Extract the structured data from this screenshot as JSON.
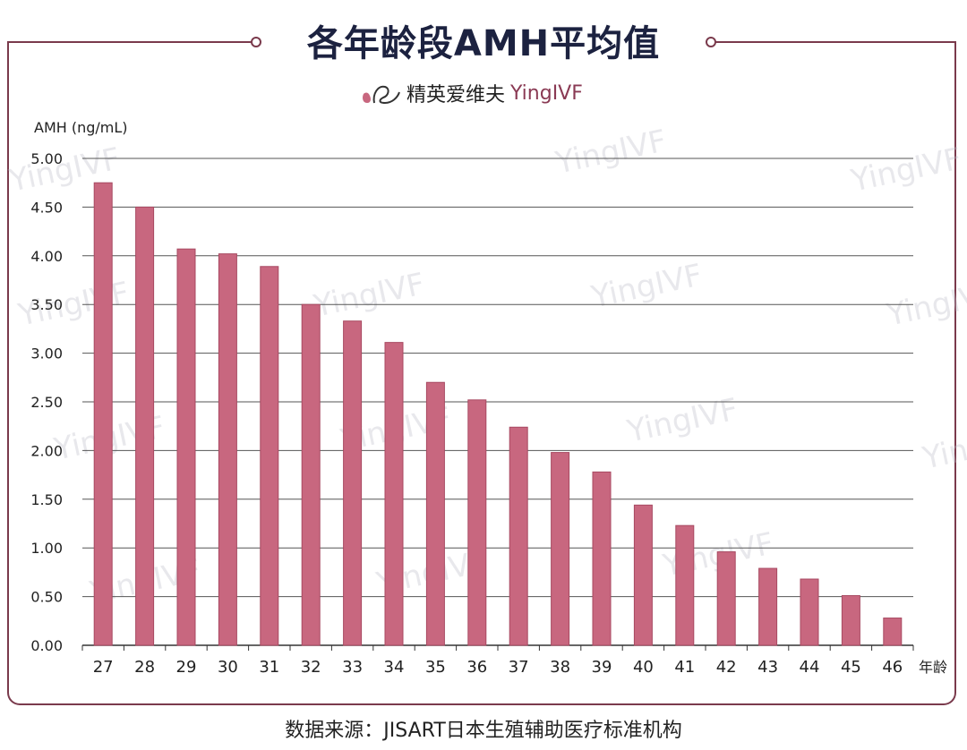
{
  "header": {
    "title": "各年龄段AMH平均值",
    "brand_cn": "精英爱维夫",
    "brand_en": "YingIVF"
  },
  "footer": {
    "source": "数据来源：JISART日本生殖辅助医疗标准机构"
  },
  "watermark_text": "YingIVF",
  "colors": {
    "bar": "#c8677f",
    "bar_edge": "#a84a62",
    "frame": "#7a3a4c",
    "title": "#1c2240"
  },
  "chart_data": {
    "type": "bar",
    "ylabel": "AMH (ng/mL)",
    "xlabel": "年龄",
    "ylim": [
      0,
      5
    ],
    "yticks": [
      "0.00",
      "0.50",
      "1.00",
      "1.50",
      "2.00",
      "2.50",
      "3.00",
      "3.50",
      "4.00",
      "4.50",
      "5.00"
    ],
    "grid": true,
    "categories": [
      "27",
      "28",
      "29",
      "30",
      "31",
      "32",
      "33",
      "34",
      "35",
      "36",
      "37",
      "38",
      "39",
      "40",
      "41",
      "42",
      "43",
      "44",
      "45",
      "46"
    ],
    "values": [
      4.75,
      4.5,
      4.07,
      4.02,
      3.89,
      3.5,
      3.33,
      3.11,
      2.7,
      2.52,
      2.24,
      1.98,
      1.78,
      1.44,
      1.23,
      0.96,
      0.79,
      0.68,
      0.51,
      0.28
    ]
  }
}
